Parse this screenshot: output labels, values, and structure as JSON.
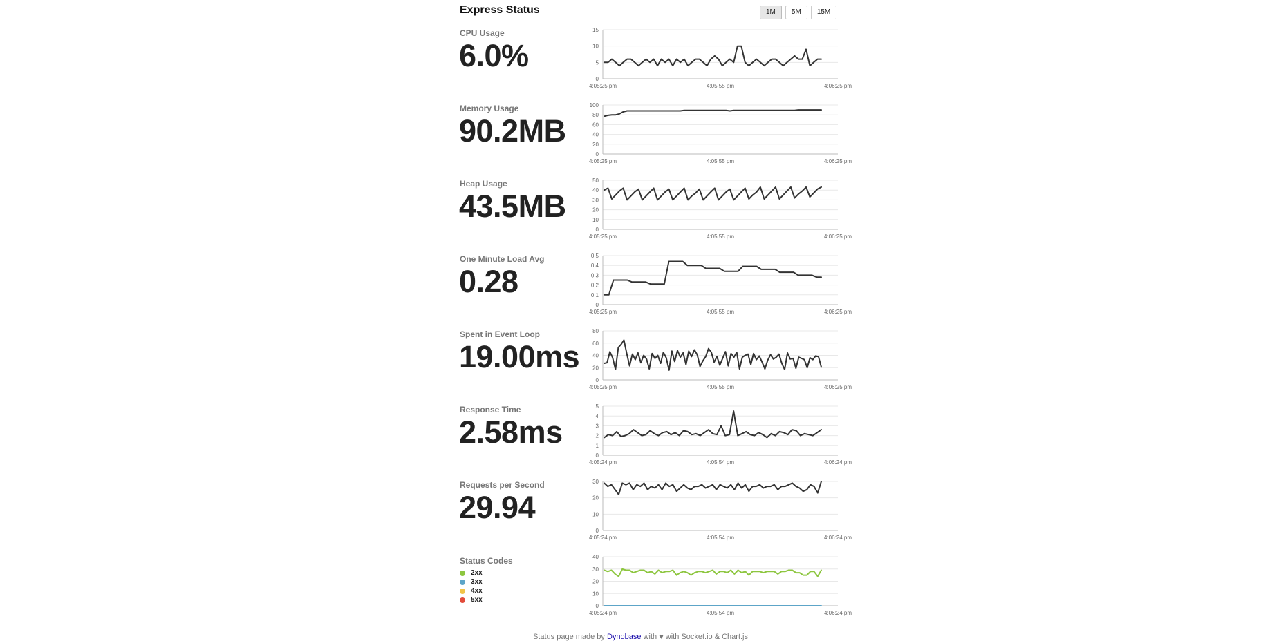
{
  "header": {
    "title": "Express Status",
    "spans": [
      "1M",
      "5M",
      "15M"
    ],
    "active_span": "1M"
  },
  "metrics": [
    {
      "id": "cpu",
      "label": "CPU Usage",
      "value": "6.0%",
      "chart_data": {
        "type": "line",
        "ylim": [
          0,
          15
        ],
        "yticks": [
          "0",
          "5",
          "10",
          "15"
        ],
        "xticks": [
          "4:05:25 pm",
          "4:05:55 pm",
          "4:06:25 pm"
        ],
        "series": [
          {
            "color": "#333333",
            "values": [
              5,
              5,
              6,
              5,
              4,
              5,
              6,
              6,
              5,
              4,
              5,
              6,
              5,
              6,
              4,
              6,
              5,
              6,
              4,
              6,
              5,
              6,
              4,
              5,
              6,
              6,
              5,
              4,
              6,
              7,
              6,
              4,
              5,
              6,
              5,
              10,
              10,
              5,
              4,
              5,
              6,
              5,
              4,
              5,
              6,
              6,
              5,
              4,
              5,
              6,
              7,
              6,
              6,
              9,
              4,
              5,
              6,
              6
            ]
          }
        ]
      }
    },
    {
      "id": "memory",
      "label": "Memory Usage",
      "value": "90.2MB",
      "chart_data": {
        "type": "line",
        "ylim": [
          0,
          100
        ],
        "yticks": [
          "0",
          "20",
          "40",
          "60",
          "80",
          "100"
        ],
        "xticks": [
          "4:05:25 pm",
          "4:05:55 pm",
          "4:06:25 pm"
        ],
        "series": [
          {
            "color": "#333333",
            "values": [
              77,
              79,
              80,
              80,
              82,
              86,
              88,
              88,
              88,
              88,
              88,
              88,
              88,
              88,
              88,
              88,
              88,
              88,
              88,
              88,
              88,
              89,
              89,
              89,
              89,
              89,
              89,
              89,
              89,
              89,
              89,
              89,
              89,
              88,
              89,
              89,
              89,
              89,
              89,
              89,
              89,
              89,
              89,
              89,
              89,
              89,
              89,
              89,
              89,
              89,
              89,
              90,
              90,
              90,
              90,
              90,
              90,
              90
            ]
          }
        ]
      }
    },
    {
      "id": "heap",
      "label": "Heap Usage",
      "value": "43.5MB",
      "chart_data": {
        "type": "line",
        "ylim": [
          0,
          50
        ],
        "yticks": [
          "0",
          "10",
          "20",
          "30",
          "40",
          "50"
        ],
        "xticks": [
          "4:05:25 pm",
          "4:05:55 pm",
          "4:06:25 pm"
        ],
        "series": [
          {
            "color": "#333333",
            "values": [
              40,
              42,
              31,
              35,
              39,
              42,
              30,
              34,
              38,
              41,
              30,
              34,
              38,
              42,
              30,
              34,
              38,
              41,
              30,
              34,
              38,
              42,
              30,
              34,
              37,
              41,
              30,
              34,
              38,
              42,
              30,
              34,
              38,
              41,
              30,
              34,
              38,
              42,
              31,
              35,
              38,
              43,
              31,
              35,
              39,
              43,
              31,
              35,
              39,
              43,
              32,
              36,
              39,
              43,
              33,
              37,
              41,
              43
            ]
          }
        ]
      }
    },
    {
      "id": "load",
      "label": "One Minute Load Avg",
      "value": "0.28",
      "chart_data": {
        "type": "line",
        "ylim": [
          0,
          0.5
        ],
        "yticks": [
          "0",
          "0.1",
          "0.2",
          "0.3",
          "0.4",
          "0.5"
        ],
        "xticks": [
          "4:05:25 pm",
          "4:05:55 pm",
          "4:06:25 pm"
        ],
        "series": [
          {
            "color": "#333333",
            "values": [
              0.1,
              0.1,
              0.25,
              0.25,
              0.25,
              0.25,
              0.23,
              0.23,
              0.23,
              0.23,
              0.21,
              0.21,
              0.21,
              0.21,
              0.44,
              0.44,
              0.44,
              0.44,
              0.4,
              0.4,
              0.4,
              0.4,
              0.37,
              0.37,
              0.37,
              0.37,
              0.34,
              0.34,
              0.34,
              0.34,
              0.39,
              0.39,
              0.39,
              0.39,
              0.36,
              0.36,
              0.36,
              0.36,
              0.33,
              0.33,
              0.33,
              0.33,
              0.3,
              0.3,
              0.3,
              0.3,
              0.28,
              0.28
            ]
          }
        ]
      }
    },
    {
      "id": "eventloop",
      "label": "Spent in Event Loop",
      "value": "19.00ms",
      "chart_data": {
        "type": "line",
        "ylim": [
          0,
          80
        ],
        "yticks": [
          "0",
          "20",
          "40",
          "60",
          "80"
        ],
        "xticks": [
          "4:05:25 pm",
          "4:05:55 pm",
          "4:06:25 pm"
        ],
        "series": [
          {
            "color": "#333333",
            "values": [
              27,
              28,
              46,
              36,
              17,
              53,
              58,
              65,
              43,
              23,
              42,
              33,
              44,
              28,
              40,
              34,
              18,
              43,
              35,
              40,
              27,
              45,
              36,
              16,
              47,
              30,
              48,
              37,
              44,
              25,
              47,
              38,
              49,
              41,
              22,
              31,
              38,
              51,
              45,
              29,
              38,
              24,
              35,
              46,
              23,
              43,
              37,
              45,
              18,
              37,
              40,
              42,
              25,
              43,
              33,
              39,
              29,
              18,
              32,
              41,
              34,
              37,
              42,
              27,
              17,
              44,
              34,
              35,
              19,
              37,
              35,
              33,
              20,
              36,
              33,
              39,
              38,
              21
            ]
          }
        ]
      }
    },
    {
      "id": "response",
      "label": "Response Time",
      "value": "2.58ms",
      "chart_data": {
        "type": "line",
        "ylim": [
          0,
          5
        ],
        "yticks": [
          "0",
          "1",
          "2",
          "3",
          "4",
          "5"
        ],
        "xticks": [
          "4:05:24 pm",
          "4:05:54 pm",
          "4:06:24 pm"
        ],
        "series": [
          {
            "color": "#333333",
            "values": [
              1.8,
              2.1,
              2.0,
              2.4,
              1.9,
              2.0,
              2.2,
              2.6,
              2.3,
              2.0,
              2.1,
              2.5,
              2.2,
              2.0,
              2.3,
              2.4,
              2.1,
              2.3,
              2.0,
              2.5,
              2.4,
              2.1,
              2.2,
              2.0,
              2.3,
              2.6,
              2.2,
              2.1,
              3.0,
              2.0,
              2.1,
              4.5,
              2.0,
              2.2,
              2.4,
              2.1,
              2.0,
              2.3,
              2.1,
              1.8,
              2.2,
              2.0,
              2.4,
              2.3,
              2.1,
              2.6,
              2.5,
              2.0,
              2.2,
              2.1,
              2.0,
              2.3,
              2.6
            ]
          }
        ]
      }
    },
    {
      "id": "rps",
      "label": "Requests per Second",
      "value": "29.94",
      "chart_data": {
        "type": "line",
        "ylim": [
          0,
          30
        ],
        "yticks": [
          "0",
          "10",
          "20",
          "30"
        ],
        "xticks": [
          "4:05:24 pm",
          "4:05:54 pm",
          "4:06:24 pm"
        ],
        "series": [
          {
            "color": "#333333",
            "values": [
              29,
              27,
              28,
              25,
              22,
              29,
              28,
              29,
              25,
              28,
              27,
              29,
              25,
              27,
              26,
              28,
              25,
              29,
              27,
              28,
              24,
              26,
              28,
              26,
              25,
              27,
              27,
              28,
              26,
              27,
              28,
              25,
              28,
              27,
              26,
              28,
              25,
              29,
              26,
              28,
              24,
              27,
              27,
              28,
              26,
              27,
              27,
              28,
              25,
              27,
              27,
              28,
              29,
              27,
              26,
              24,
              25,
              28,
              27,
              23,
              30
            ]
          }
        ]
      }
    },
    {
      "id": "status",
      "label": "Status Codes",
      "value": "",
      "legend": [
        {
          "name": "2xx",
          "color": "#8dc63f"
        },
        {
          "name": "3xx",
          "color": "#5da5c8"
        },
        {
          "name": "4xx",
          "color": "#f1c448"
        },
        {
          "name": "5xx",
          "color": "#e24c3b"
        }
      ],
      "chart_data": {
        "type": "line",
        "ylim": [
          0,
          40
        ],
        "yticks": [
          "0",
          "10",
          "20",
          "30",
          "40"
        ],
        "xticks": [
          "4:05:24 pm",
          "4:05:54 pm",
          "4:06:24 pm"
        ],
        "series": [
          {
            "name": "2xx",
            "color": "#8dc63f",
            "values": [
              29,
              28,
              29,
              26,
              24,
              30,
              29,
              29,
              27,
              28,
              29,
              29,
              27,
              28,
              26,
              29,
              27,
              28,
              28,
              29,
              25,
              27,
              28,
              27,
              25,
              27,
              28,
              28,
              27,
              28,
              29,
              26,
              28,
              28,
              27,
              29,
              26,
              29,
              27,
              28,
              25,
              28,
              28,
              28,
              27,
              28,
              28,
              28,
              26,
              28,
              28,
              29,
              29,
              27,
              27,
              25,
              25,
              28,
              28,
              24,
              29
            ]
          },
          {
            "name": "3xx",
            "color": "#5da5c8",
            "values": [
              0,
              0,
              0,
              0,
              0,
              0,
              0,
              0,
              0,
              0,
              0,
              0,
              0,
              0,
              0,
              0,
              0,
              0,
              0,
              0,
              0,
              0,
              0,
              0,
              0,
              0,
              0,
              0,
              0,
              0,
              0,
              0,
              0,
              0,
              0,
              0,
              0,
              0,
              0,
              0,
              0,
              0,
              0,
              0,
              0,
              0,
              0,
              0,
              0,
              0,
              0,
              0,
              0,
              0,
              0,
              0,
              0,
              0,
              0,
              0,
              0
            ]
          }
        ]
      }
    }
  ],
  "footer": {
    "prefix": "Status page made by ",
    "link_text": "Dynobase",
    "suffix": " with ♥ with Socket.io & Chart.js"
  }
}
